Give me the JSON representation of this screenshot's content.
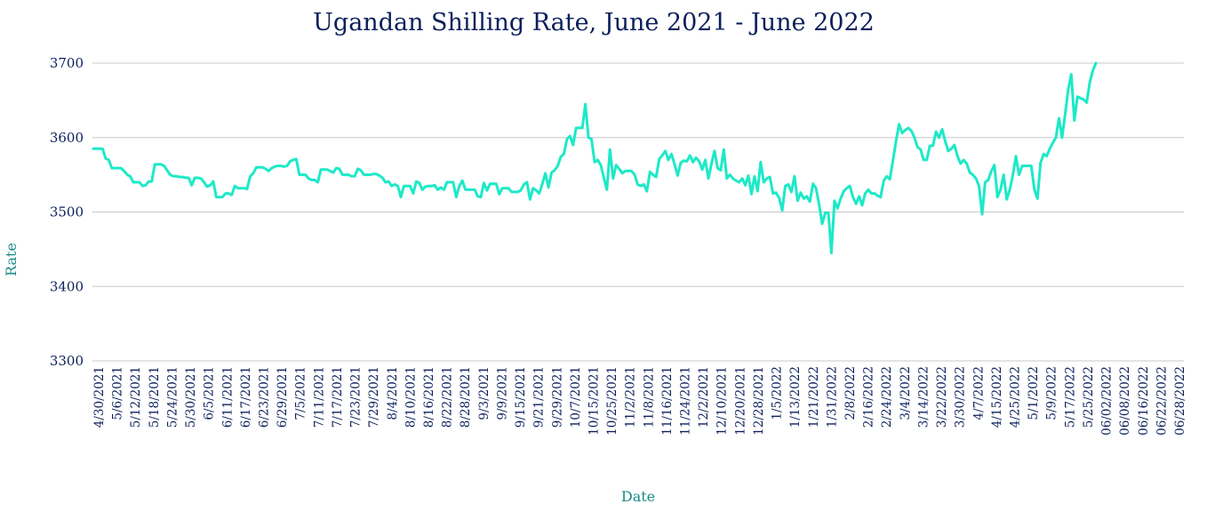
{
  "chart_data": {
    "type": "line",
    "title": "Ugandan Shilling Rate, June 2021 - June 2022",
    "xlabel": "Date",
    "ylabel": "Rate",
    "ylim": [
      3300,
      3700
    ],
    "yticks": [
      3300,
      3400,
      3500,
      3600,
      3700
    ],
    "grid": true,
    "line_color": "#1de9c8",
    "text_color": "#0b1f5c",
    "axis_label_color": "#178a83",
    "xtick_labels": [
      "4/30/2021",
      "5/6/2021",
      "5/12/2021",
      "5/18/2021",
      "5/24/2021",
      "5/30/2021",
      "6/5/2021",
      "6/11/2021",
      "6/17/2021",
      "6/23/2021",
      "6/29/2021",
      "7/5/2021",
      "7/11/2021",
      "7/17/2021",
      "7/23/2021",
      "7/29/2021",
      "8/4/2021",
      "8/10/2021",
      "8/16/2021",
      "8/22/2021",
      "8/28/2021",
      "9/3/2021",
      "9/9/2021",
      "9/15/2021",
      "9/21/2021",
      "9/29/2021",
      "10/7/2021",
      "10/15/2021",
      "10/25/2021",
      "11/2/2021",
      "11/8/2021",
      "11/16/2021",
      "11/24/2021",
      "12/2/2021",
      "12/10/2021",
      "12/20/2021",
      "12/28/2021",
      "1/5/2022",
      "1/13/2022",
      "1/21/2022",
      "1/31/2022",
      "2/8/2022",
      "2/16/2022",
      "2/24/2022",
      "3/4/2022",
      "3/14/2022",
      "3/22/2022",
      "3/30/2022",
      "4/7/2022",
      "4/15/2022",
      "4/25/2022",
      "5/1/2022",
      "5/9/2022",
      "5/17/2022",
      "5/25/2022",
      "06/02/2022",
      "06/08/2022",
      "06/16/2022",
      "06/22/2022",
      "06/28/2022"
    ],
    "series": [
      {
        "values": [
          3585,
          3585,
          3585,
          3585,
          3572,
          3570,
          3559,
          3559,
          3559,
          3559,
          3555,
          3550,
          3548,
          3540,
          3540,
          3540,
          3535,
          3536,
          3541,
          3541,
          3564,
          3564,
          3564,
          3562,
          3556,
          3550,
          3548,
          3548,
          3547,
          3547,
          3546,
          3546,
          3536,
          3546,
          3546,
          3545,
          3540,
          3534,
          3536,
          3541,
          3520,
          3520,
          3520,
          3525,
          3525,
          3523,
          3535,
          3532,
          3532,
          3532,
          3531,
          3548,
          3552,
          3560,
          3560,
          3560,
          3558,
          3555,
          3559,
          3561,
          3562,
          3562,
          3561,
          3562,
          3568,
          3570,
          3571,
          3550,
          3550,
          3550,
          3545,
          3543,
          3543,
          3540,
          3557,
          3557,
          3557,
          3555,
          3553,
          3559,
          3558,
          3550,
          3550,
          3550,
          3548,
          3548,
          3558,
          3556,
          3550,
          3550,
          3550,
          3551,
          3551,
          3549,
          3546,
          3540,
          3541,
          3535,
          3537,
          3535,
          3520,
          3535,
          3535,
          3535,
          3525,
          3541,
          3539,
          3530,
          3534,
          3535,
          3535,
          3536,
          3530,
          3533,
          3530,
          3540,
          3540,
          3540,
          3520,
          3535,
          3542,
          3530,
          3530,
          3530,
          3530,
          3521,
          3520,
          3539,
          3529,
          3538,
          3538,
          3538,
          3524,
          3532,
          3532,
          3532,
          3527,
          3527,
          3527,
          3529,
          3537,
          3540,
          3517,
          3532,
          3529,
          3525,
          3538,
          3552,
          3533,
          3553,
          3556,
          3562,
          3574,
          3578,
          3598,
          3602,
          3590,
          3613,
          3613,
          3613,
          3645,
          3600,
          3598,
          3567,
          3570,
          3563,
          3546,
          3530,
          3584,
          3545,
          3563,
          3558,
          3552,
          3555,
          3555,
          3555,
          3550,
          3537,
          3535,
          3537,
          3528,
          3554,
          3550,
          3547,
          3571,
          3576,
          3582,
          3570,
          3578,
          3564,
          3549,
          3566,
          3569,
          3568,
          3576,
          3567,
          3573,
          3568,
          3557,
          3570,
          3545,
          3565,
          3582,
          3559,
          3556,
          3584,
          3545,
          3550,
          3545,
          3542,
          3540,
          3545,
          3536,
          3549,
          3524,
          3548,
          3528,
          3567,
          3540,
          3545,
          3547,
          3525,
          3526,
          3519,
          3502,
          3535,
          3537,
          3527,
          3548,
          3515,
          3526,
          3518,
          3521,
          3514,
          3538,
          3532,
          3510,
          3484,
          3499,
          3499,
          3445,
          3515,
          3505,
          3518,
          3528,
          3532,
          3535,
          3520,
          3511,
          3521,
          3509,
          3525,
          3530,
          3525,
          3525,
          3522,
          3520,
          3542,
          3548,
          3544,
          3569,
          3595,
          3618,
          3606,
          3610,
          3613,
          3609,
          3600,
          3587,
          3584,
          3570,
          3570,
          3589,
          3589,
          3608,
          3600,
          3611,
          3595,
          3582,
          3585,
          3590,
          3575,
          3565,
          3570,
          3565,
          3553,
          3550,
          3545,
          3535,
          3497,
          3540,
          3543,
          3555,
          3563,
          3520,
          3530,
          3550,
          3517,
          3530,
          3550,
          3575,
          3550,
          3562,
          3562,
          3562,
          3562,
          3530,
          3518,
          3566,
          3578,
          3575,
          3585,
          3593,
          3600,
          3626,
          3600,
          3631,
          3665,
          3685,
          3623,
          3655,
          3653,
          3651,
          3647,
          3674,
          3690,
          3700
        ]
      }
    ]
  }
}
